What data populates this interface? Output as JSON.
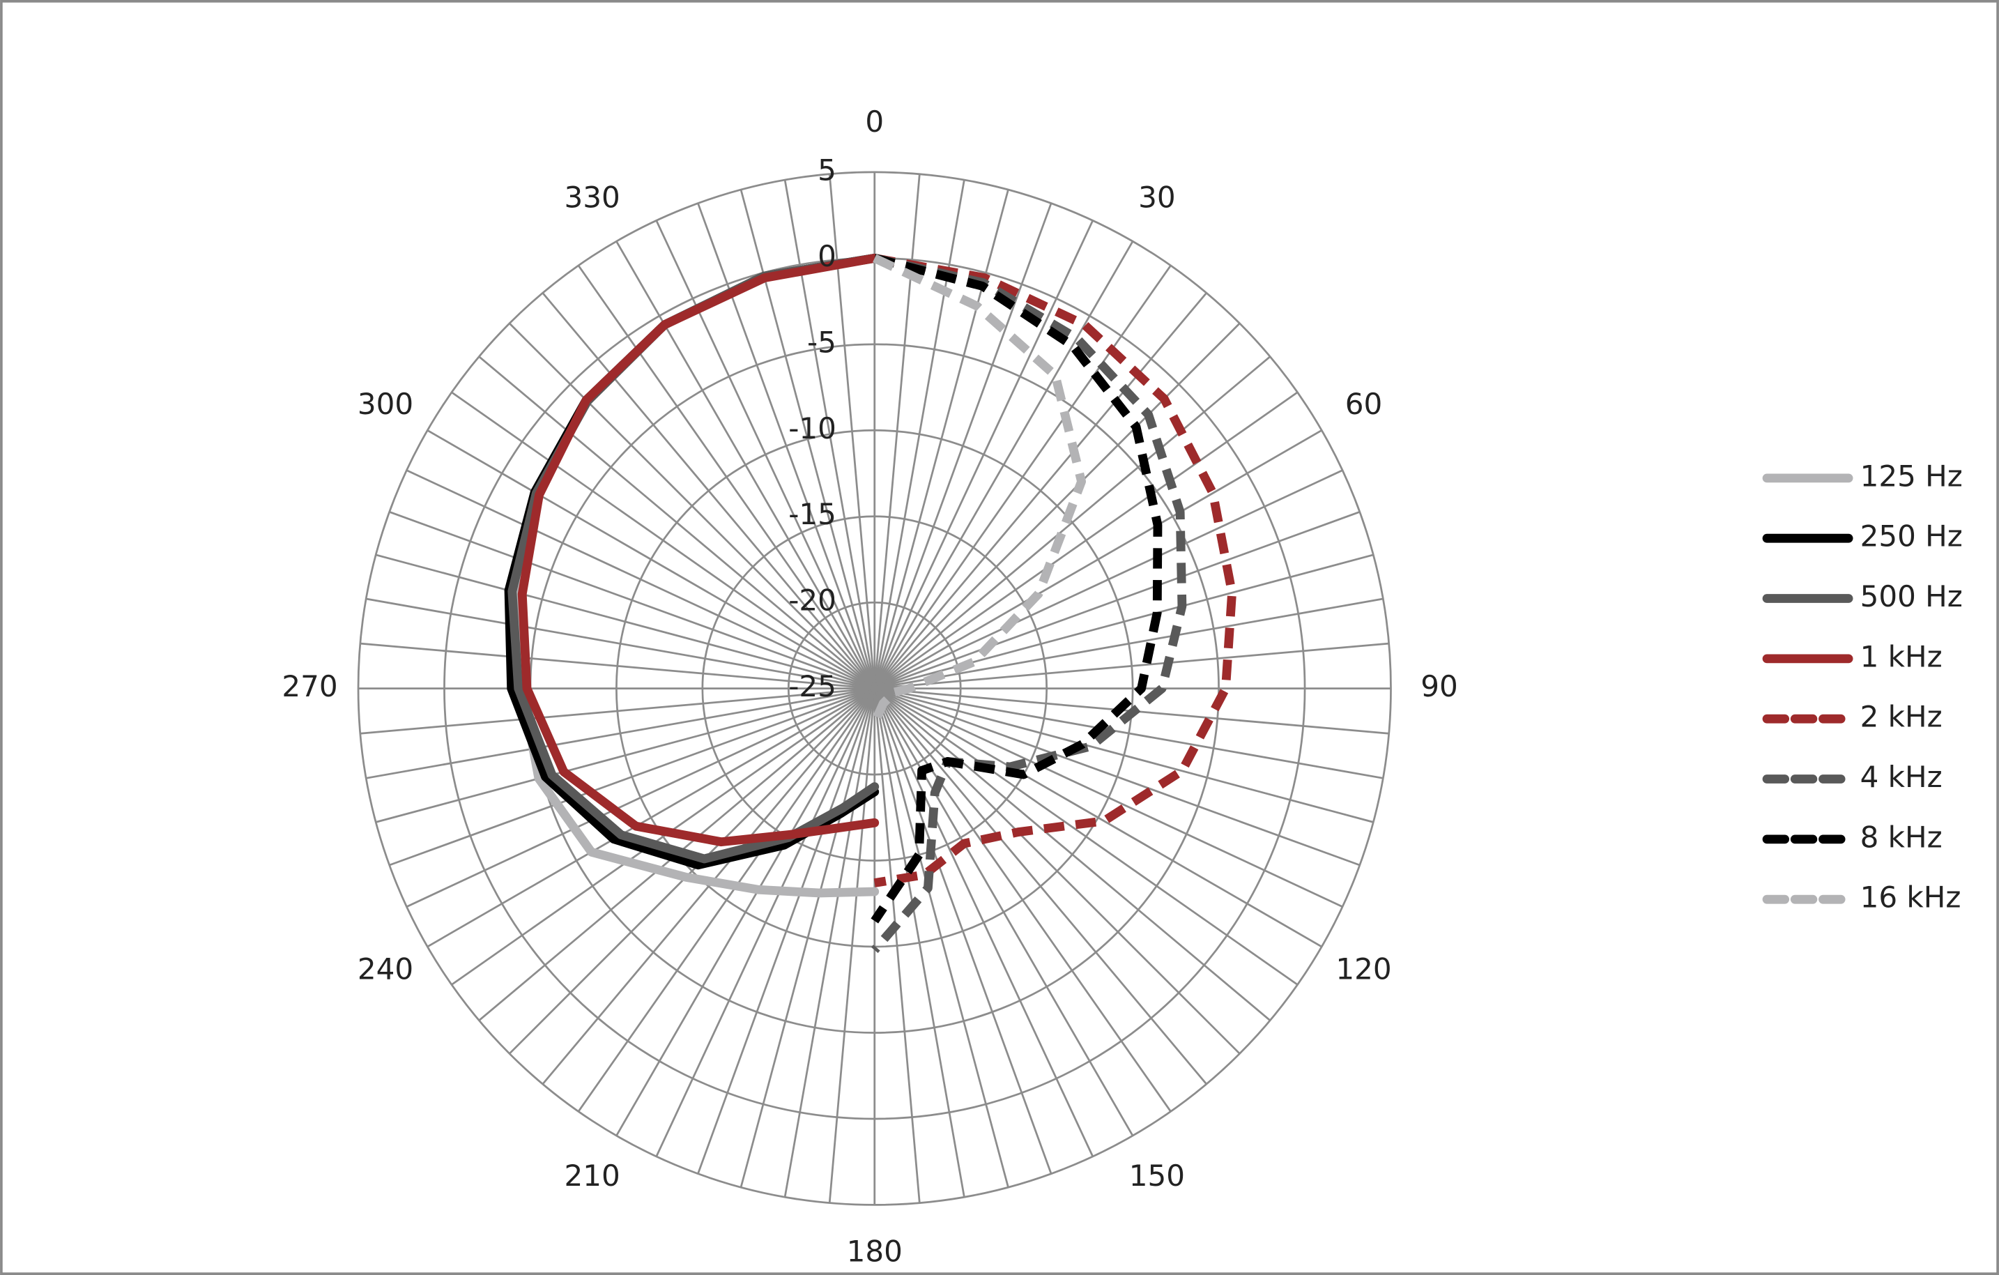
{
  "chart_data": {
    "type": "polar",
    "rlim": [
      -25,
      5
    ],
    "rticks": [
      5,
      0,
      -5,
      -10,
      -15,
      -20,
      -25
    ],
    "thetaticks": [
      0,
      30,
      60,
      90,
      120,
      150,
      180,
      210,
      240,
      270,
      300,
      330
    ],
    "grid": true,
    "legend": "right",
    "series": [
      {
        "name": "125 Hz",
        "color": "#b3b3b5",
        "dashed": false,
        "theta": [
          180,
          195,
          210,
          225,
          240,
          255,
          270,
          285,
          300,
          315,
          330,
          345,
          360
        ],
        "values": [
          -13.2,
          -12.7,
          -11.5,
          -9.5,
          -6,
          -4.8,
          -4.5,
          -3.6,
          -2.2,
          -1.3,
          -0.6,
          -0.2,
          0
        ]
      },
      {
        "name": "250 Hz",
        "color": "#000000",
        "dashed": false,
        "theta": [
          180,
          195,
          210,
          225,
          240,
          255,
          270,
          285,
          300,
          315,
          330,
          345,
          360
        ],
        "values": [
          -19,
          -17.5,
          -14.5,
          -10.5,
          -7.5,
          -5.2,
          -3.9,
          -3,
          -2.2,
          -1.3,
          -0.6,
          -0.2,
          0
        ]
      },
      {
        "name": "500 Hz",
        "color": "#595959",
        "dashed": false,
        "theta": [
          180,
          195,
          210,
          225,
          240,
          255,
          270,
          285,
          300,
          315,
          330,
          345,
          360
        ],
        "values": [
          -19.3,
          -17.8,
          -15,
          -11,
          -8,
          -5.6,
          -4.3,
          -3.2,
          -2.3,
          -1.4,
          -0.6,
          -0.2,
          0
        ]
      },
      {
        "name": "1 kHz",
        "color": "#9e2a2b",
        "dashed": false,
        "theta": [
          180,
          195,
          210,
          225,
          240,
          255,
          270,
          285,
          300,
          315,
          330,
          345,
          360
        ],
        "values": [
          -17.2,
          -16.6,
          -15.2,
          -12.4,
          -9,
          -6.3,
          -4.8,
          -3.8,
          -2.5,
          -1.3,
          -0.6,
          -0.3,
          0
        ]
      },
      {
        "name": "2 kHz",
        "color": "#9e2a2b",
        "dashed": true,
        "theta": [
          0,
          15,
          30,
          45,
          60,
          75,
          90,
          105,
          120,
          135,
          150,
          165,
          180
        ],
        "values": [
          0,
          -0.3,
          -0.6,
          -1.2,
          -2.3,
          -3.5,
          -4.6,
          -6.5,
          -9.6,
          -13.2,
          -14.6,
          -13.8,
          -13.7
        ]
      },
      {
        "name": "4 kHz",
        "color": "#595959",
        "dashed": true,
        "theta": [
          0,
          15,
          30,
          45,
          60,
          75,
          90,
          105,
          120,
          135,
          150,
          165,
          180
        ],
        "values": [
          0,
          -0.6,
          -1.5,
          -2.5,
          -4.5,
          -6.5,
          -8.3,
          -12,
          -15.9,
          -19,
          -18,
          -13,
          -9.8
        ]
      },
      {
        "name": "8 kHz",
        "color": "#000000",
        "dashed": true,
        "theta": [
          0,
          15,
          30,
          45,
          60,
          75,
          90,
          105,
          120,
          135,
          150,
          165,
          180
        ],
        "values": [
          0,
          -0.8,
          -2,
          -3.5,
          -6,
          -8,
          -9.5,
          -12.5,
          -15,
          -19,
          -19.5,
          -15,
          -11.5
        ]
      },
      {
        "name": "16 kHz",
        "color": "#b3b3b5",
        "dashed": true,
        "theta": [
          0,
          15,
          30,
          45,
          60,
          75,
          90,
          105,
          120,
          150,
          180
        ],
        "values": [
          0,
          -2,
          -4,
          -8,
          -14,
          -19,
          -23,
          -24,
          -24,
          -24,
          -23
        ]
      }
    ]
  }
}
